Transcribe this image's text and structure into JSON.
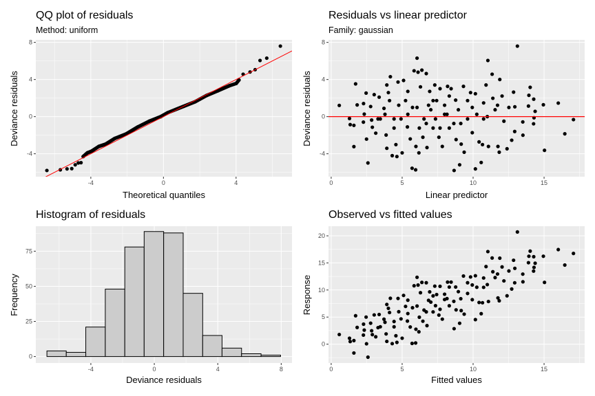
{
  "chart_data": [
    {
      "id": "qq",
      "type": "scatter",
      "title": "QQ plot of residuals",
      "subtitle": "Method: uniform",
      "xlabel": "Theoretical quantiles",
      "ylabel": "Deviance residuals",
      "xlim": [
        -7.03,
        7.08
      ],
      "ylim": [
        -6.47,
        8.27
      ],
      "xticks": [
        -4,
        0,
        4
      ],
      "yticks": [
        -4,
        0,
        4,
        8
      ],
      "grid": true,
      "reference_line": {
        "slope": 1,
        "intercept": 0,
        "color": "#ff0000"
      },
      "points": [
        [
          -6.42,
          -5.8
        ],
        [
          -5.68,
          -5.73
        ],
        [
          -5.31,
          -5.63
        ],
        [
          -5.05,
          -5.6
        ],
        [
          -4.86,
          -5.19
        ],
        [
          -4.69,
          -4.99
        ],
        [
          -4.54,
          -4.96
        ],
        [
          -4.42,
          -4.3
        ],
        [
          -4.19,
          -3.9
        ],
        [
          -3.94,
          -3.7
        ],
        [
          -3.56,
          -3.21
        ],
        [
          -3.18,
          -2.96
        ],
        [
          -2.68,
          -2.35
        ],
        [
          -2.04,
          -1.85
        ],
        [
          -1.41,
          -1.11
        ],
        [
          -0.78,
          -0.49
        ],
        [
          -0.15,
          0
        ],
        [
          0.23,
          0.42
        ],
        [
          1.11,
          1.11
        ],
        [
          1.74,
          1.6
        ],
        [
          2.37,
          2.27
        ],
        [
          3.0,
          2.79
        ],
        [
          3.63,
          3.33
        ],
        [
          4.01,
          3.58
        ],
        [
          4.16,
          3.95
        ],
        [
          4.39,
          4.57
        ],
        [
          4.77,
          4.81
        ],
        [
          5.05,
          5.06
        ],
        [
          5.32,
          6.05
        ],
        [
          5.69,
          6.3
        ],
        [
          6.44,
          7.6
        ]
      ]
    },
    {
      "id": "resid",
      "type": "scatter",
      "title": "Residuals vs linear predictor",
      "subtitle": "Family: gaussian",
      "xlabel": "Linear predictor",
      "ylabel": "Deviance residuals",
      "xlim": [
        -0.19,
        17.86
      ],
      "ylim": [
        -6.47,
        8.27
      ],
      "xticks": [
        0,
        5,
        10,
        15
      ],
      "yticks": [
        -4,
        0,
        4,
        8
      ],
      "grid": true,
      "reference_line": {
        "slope": 0,
        "intercept": 0,
        "color": "#ff0000"
      }
    },
    {
      "id": "hist",
      "type": "bar",
      "title": "Histogram of residuals",
      "xlabel": "Deviance residuals",
      "ylabel": "Frequency",
      "xlim": [
        -7.47,
        8.68
      ],
      "ylim": [
        -4.6,
        92.8
      ],
      "xticks": [
        -4,
        0,
        4,
        8
      ],
      "yticks": [
        0,
        25,
        50,
        75
      ],
      "grid": true,
      "bin_edges": [
        -6.77,
        -5.55,
        -4.32,
        -3.09,
        -1.86,
        -0.64,
        0.59,
        1.82,
        3.05,
        4.27,
        5.5,
        6.73,
        7.96
      ],
      "counts": [
        4,
        3,
        21,
        48,
        78,
        89,
        88,
        45,
        15,
        6,
        2,
        1
      ],
      "fill": "#cccccc"
    },
    {
      "id": "obs",
      "type": "scatter",
      "title": "Observed vs fitted values",
      "xlabel": "Fitted values",
      "ylabel": "Response",
      "xlim": [
        -0.19,
        17.86
      ],
      "ylim": [
        -3.48,
        21.78
      ],
      "xticks": [
        0,
        5,
        10,
        15
      ],
      "yticks": [
        0,
        5,
        10,
        15,
        20
      ],
      "grid": true
    }
  ],
  "observations": {
    "columns": [
      "fitted",
      "deviance_residual",
      "response"
    ],
    "rows": [
      [
        0.57,
        1.21,
        1.78
      ],
      [
        1.29,
        -0.2,
        1.09
      ],
      [
        1.34,
        -0.86,
        0.48
      ],
      [
        1.6,
        -0.94,
        0.66
      ],
      [
        1.6,
        -3.23,
        -1.63
      ],
      [
        1.72,
        3.53,
        5.25
      ],
      [
        1.83,
        1.26,
        3.09
      ],
      [
        2.27,
        -0.59,
        1.68
      ],
      [
        2.28,
        1.41,
        3.69
      ],
      [
        2.33,
        0.27,
        2.6
      ],
      [
        2.46,
        2.54,
        5.0
      ],
      [
        2.49,
        -2.42,
        0.07
      ],
      [
        2.59,
        -4.99,
        -2.4
      ],
      [
        2.78,
        1.09,
        3.87
      ],
      [
        2.85,
        -0.37,
        2.48
      ],
      [
        2.9,
        -1.14,
        1.76
      ],
      [
        3.03,
        2.37,
        5.4
      ],
      [
        3.14,
        -1.78,
        1.36
      ],
      [
        3.38,
        2.1,
        5.48
      ],
      [
        3.46,
        -0.25,
        3.21
      ],
      [
        3.72,
        0.89,
        4.61
      ],
      [
        4.17,
        4.3,
        8.47
      ],
      [
        3.92,
        3.41,
        7.33
      ],
      [
        4.03,
        2.59,
        6.62
      ],
      [
        3.87,
        -1.98,
        1.89
      ],
      [
        3.92,
        -3.41,
        0.51
      ],
      [
        4.3,
        -4.2,
        0.1
      ],
      [
        4.63,
        -4.3,
        0.33
      ],
      [
        4.71,
        3.73,
        8.44
      ],
      [
        4.56,
        -3.01,
        1.55
      ],
      [
        5.0,
        -3.9,
        1.1
      ],
      [
        5.1,
        3.9,
        9.0
      ],
      [
        4.76,
        1.23,
        5.99
      ],
      [
        4.43,
        -0.25,
        4.18
      ],
      [
        4.92,
        -0.25,
        4.67
      ],
      [
        5.24,
        1.73,
        6.97
      ],
      [
        5.4,
        2.72,
        8.12
      ],
      [
        5.37,
        -1.11,
        4.26
      ],
      [
        5.57,
        -2.4,
        3.17
      ],
      [
        5.7,
        -5.56,
        0.14
      ],
      [
        5.84,
        4.94,
        10.78
      ],
      [
        5.95,
        -5.73,
        0.22
      ],
      [
        6.05,
        6.3,
        12.35
      ],
      [
        6.12,
        4.79,
        10.91
      ],
      [
        6.39,
        5.01,
        11.4
      ],
      [
        6.18,
        -3.9,
        2.28
      ],
      [
        5.97,
        -3.21,
        2.76
      ],
      [
        6.05,
        0.99,
        7.04
      ],
      [
        6.29,
        3.21,
        9.5
      ],
      [
        6.54,
        -0.25,
        6.29
      ],
      [
        6.7,
        4.64,
        11.34
      ],
      [
        6.75,
        -3.33,
        3.42
      ],
      [
        6.94,
        2.72,
        9.66
      ],
      [
        7.02,
        0.74,
        7.76
      ],
      [
        7.18,
        -1.23,
        5.95
      ],
      [
        7.3,
        3.41,
        10.71
      ],
      [
        7.43,
        1.73,
        9.16
      ],
      [
        7.59,
        -2.22,
        5.37
      ],
      [
        7.67,
        3.01,
        10.68
      ],
      [
        7.83,
        -3.21,
        4.62
      ],
      [
        8.2,
        3.26,
        11.46
      ],
      [
        7.99,
        0.25,
        8.24
      ],
      [
        8.32,
        -1.23,
        7.09
      ],
      [
        8.45,
        3.01,
        11.46
      ],
      [
        8.66,
        -5.8,
        2.86
      ],
      [
        8.77,
        1.78,
        10.55
      ],
      [
        8.8,
        -2.47,
        6.33
      ],
      [
        9.05,
        -5.19,
        3.86
      ],
      [
        9.16,
        -2.96,
        6.2
      ],
      [
        9.32,
        3.26,
        12.58
      ],
      [
        9.37,
        -3.83,
        5.54
      ],
      [
        9.61,
        -0.25,
        9.36
      ],
      [
        9.82,
        2.59,
        12.41
      ],
      [
        9.94,
        -1.73,
        8.21
      ],
      [
        10.16,
        -5.63,
        4.53
      ],
      [
        10.16,
        2.47,
        12.63
      ],
      [
        10.42,
        -2.72,
        7.7
      ],
      [
        10.57,
        -4.94,
        5.63
      ],
      [
        10.66,
        -3.01,
        7.65
      ],
      [
        10.74,
        1.48,
        12.22
      ],
      [
        10.91,
        3.41,
        14.32
      ],
      [
        11.04,
        6.05,
        17.09
      ],
      [
        11.08,
        -3.21,
        7.87
      ],
      [
        11.0,
        0.0,
        11.0
      ],
      [
        11.34,
        4.57,
        15.91
      ],
      [
        11.39,
        1.98,
        13.37
      ],
      [
        11.55,
        0.74,
        12.29
      ],
      [
        11.75,
        -3.21,
        8.54
      ],
      [
        11.84,
        -3.83,
        8.01
      ],
      [
        11.88,
        4.0,
        15.88
      ],
      [
        12.04,
        2.22,
        14.26
      ],
      [
        12.17,
        -0.49,
        11.68
      ],
      [
        12.39,
        -3.46,
        8.93
      ],
      [
        12.52,
        0.99,
        13.51
      ],
      [
        12.72,
        -2.54,
        10.18
      ],
      [
        12.85,
        2.64,
        15.49
      ],
      [
        12.94,
        1.06,
        14.0
      ],
      [
        13.12,
        7.6,
        20.72
      ],
      [
        12.93,
        -1.6,
        11.33
      ],
      [
        13.5,
        -0.57,
        12.93
      ],
      [
        13.51,
        -2.0,
        11.51
      ],
      [
        13.9,
        1.14,
        15.04
      ],
      [
        14.02,
        3.16,
        17.18
      ],
      [
        13.93,
        2.3,
        16.23
      ],
      [
        14.27,
        1.88,
        16.15
      ],
      [
        14.29,
        -0.12,
        14.17
      ],
      [
        14.37,
        0.57,
        14.94
      ],
      [
        14.26,
        -0.77,
        13.49
      ],
      [
        14.95,
        1.28,
        16.23
      ],
      [
        15.03,
        -3.63,
        11.4
      ],
      [
        16.0,
        1.46,
        17.46
      ],
      [
        16.46,
        -1.85,
        14.61
      ],
      [
        17.07,
        -0.32,
        16.75
      ],
      [
        7.35,
        -0.25,
        7.1
      ],
      [
        8.16,
        0.25,
        8.41
      ],
      [
        8.96,
        0.74,
        9.7
      ],
      [
        6.7,
        -0.74,
        5.96
      ],
      [
        5.4,
        0.25,
        5.65
      ],
      [
        3.3,
        -0.25,
        3.05
      ],
      [
        7.67,
        -1.23,
        6.44
      ],
      [
        6.46,
        -2.22,
        4.24
      ],
      [
        9.13,
        -0.74,
        8.39
      ],
      [
        9.94,
        0.99,
        10.93
      ],
      [
        10.74,
        -0.25,
        10.49
      ],
      [
        11.72,
        1.23,
        12.95
      ],
      [
        4.11,
        1.73,
        5.84
      ],
      [
        4.43,
        -1.23,
        3.2
      ],
      [
        3.79,
        0.25,
        4.04
      ],
      [
        8.32,
        2.22,
        10.54
      ],
      [
        7.18,
        1.73,
        8.91
      ],
      [
        6.21,
        -1.23,
        4.98
      ],
      [
        6.86,
        1.23,
        8.09
      ],
      [
        9.61,
        1.73,
        11.34
      ],
      [
        10.26,
        0.25,
        10.51
      ],
      [
        5.73,
        0.99,
        6.72
      ],
      [
        7.99,
        1.23,
        9.22
      ],
      [
        8.64,
        -0.74,
        7.9
      ]
    ]
  },
  "colors": {
    "panel_background": "#ebebeb",
    "grid": "#ffffff",
    "points": "#000000",
    "reference_line": "#ff0000",
    "bar_fill": "#cccccc"
  }
}
